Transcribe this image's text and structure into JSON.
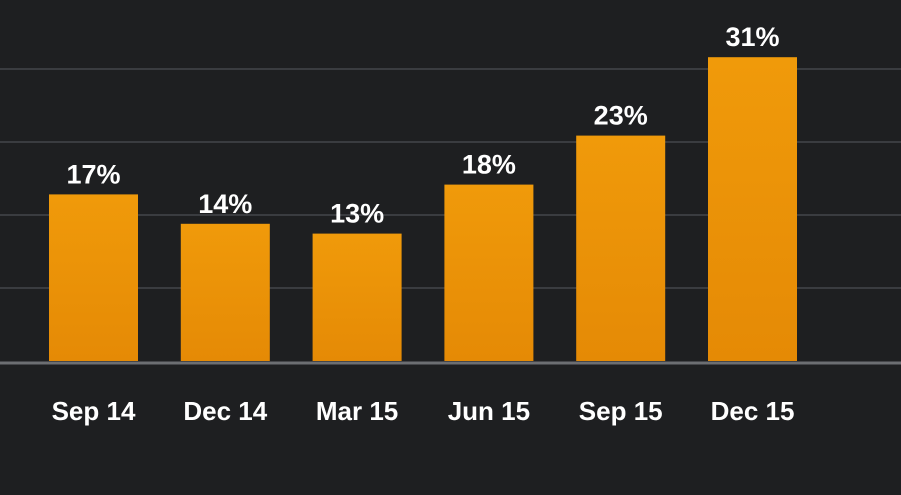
{
  "chart_data": {
    "type": "bar",
    "categories": [
      "Sep 14",
      "Dec 14",
      "Mar 15",
      "Jun 15",
      "Sep 15",
      "Dec 15"
    ],
    "values": [
      17,
      14,
      13,
      18,
      23,
      31
    ],
    "value_labels": [
      "17%",
      "14%",
      "13%",
      "18%",
      "23%",
      "31%"
    ],
    "unit": "%",
    "ylim": [
      0,
      30
    ],
    "grid": true,
    "title": "",
    "xlabel": "",
    "ylabel": ""
  },
  "colors": {
    "background": "#1e1f21",
    "bar_top": "#f09a0a",
    "bar_bottom": "#e58a05",
    "grid": "#3a3c40",
    "baseline": "#6c6e72",
    "text": "#ffffff"
  }
}
